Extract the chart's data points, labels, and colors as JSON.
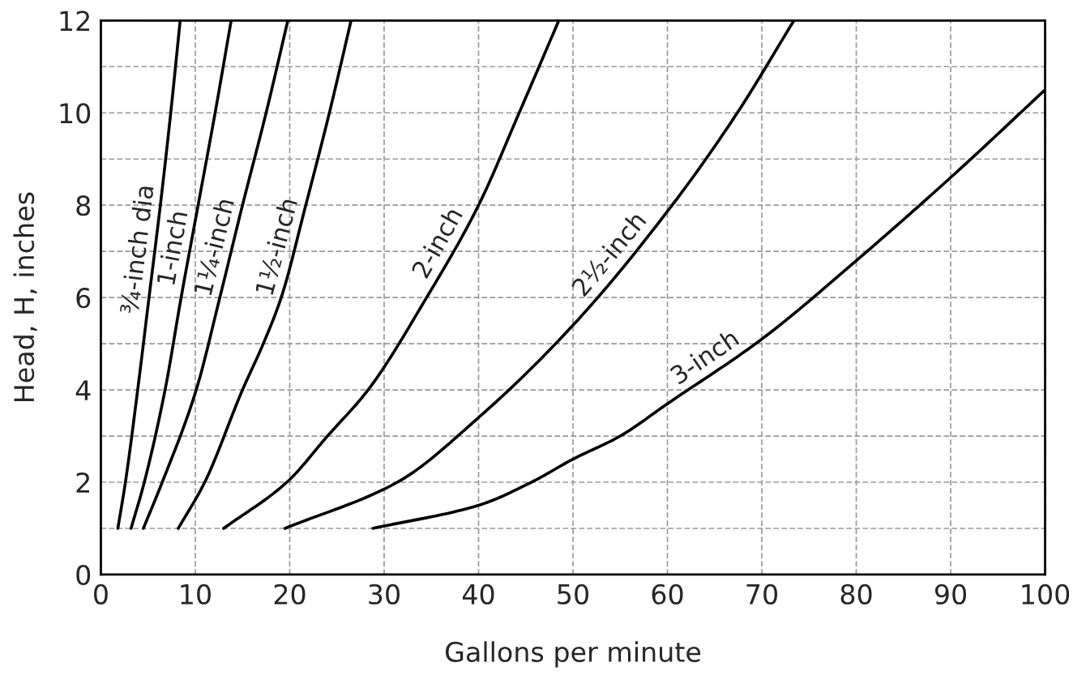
{
  "chart_data": {
    "type": "line",
    "xlabel": "Gallons per minute",
    "ylabel": "Head, H, inches",
    "xlim": [
      0,
      100
    ],
    "ylim": [
      0,
      12
    ],
    "xticks": [
      0,
      10,
      20,
      30,
      40,
      50,
      60,
      70,
      80,
      90,
      100
    ],
    "yticks": [
      0,
      {
        "value": 1,
        "label": null
      },
      2,
      {
        "value": 3,
        "label": null
      },
      4,
      {
        "value": 5,
        "label": null
      },
      6,
      {
        "value": 7,
        "label": null
      },
      8,
      {
        "value": 9,
        "label": null
      },
      10,
      {
        "value": 11,
        "label": null
      },
      12
    ],
    "grid": true,
    "marker": "none",
    "line_style": "solid",
    "legend": false,
    "series": [
      {
        "name": "¾-inch dia",
        "color": "#000000",
        "x": [
          1.8,
          2.6,
          3.9,
          5.1,
          6.3,
          7.4,
          8.4
        ],
        "values": [
          1,
          2,
          4,
          6,
          8,
          10,
          12
        ]
      },
      {
        "name": "1-inch",
        "color": "#000000",
        "x": [
          3.2,
          4.6,
          6.8,
          8.5,
          10.3,
          12.1,
          13.8
        ],
        "values": [
          1,
          2,
          4,
          6,
          8,
          10,
          12
        ]
      },
      {
        "name": "1¼-inch",
        "color": "#000000",
        "x": [
          4.5,
          6.5,
          10.1,
          12.6,
          15,
          17.5,
          19.8
        ],
        "values": [
          1,
          2,
          4,
          6,
          8,
          10,
          12
        ]
      },
      {
        "name": "1½-inch",
        "color": "#000000",
        "x": [
          8.2,
          11,
          15,
          17.2,
          19.1,
          21.7,
          24.2,
          26.5
        ],
        "values": [
          1,
          2,
          4,
          5,
          6,
          8,
          10,
          12
        ]
      },
      {
        "name": "2-inch",
        "color": "#000000",
        "x": [
          13,
          19.7,
          24,
          28.3,
          34.5,
          40,
          44.3,
          48.5
        ],
        "values": [
          1,
          2,
          3,
          4,
          6,
          8,
          10,
          12
        ]
      },
      {
        "name": "2½-inch",
        "color": "#000000",
        "x": [
          19.5,
          31.4,
          40,
          50,
          60.5,
          67.4,
          73.4
        ],
        "values": [
          1,
          2,
          3.4,
          5.4,
          8,
          10,
          12
        ]
      },
      {
        "name": "3-inch",
        "color": "#000000",
        "x": [
          28.8,
          40,
          45.6,
          50,
          55,
          60,
          70,
          80,
          90,
          100
        ],
        "values": [
          1,
          1.5,
          2,
          2.5,
          3,
          3.7,
          5.1,
          6.8,
          8.6,
          10.5
        ]
      }
    ]
  }
}
